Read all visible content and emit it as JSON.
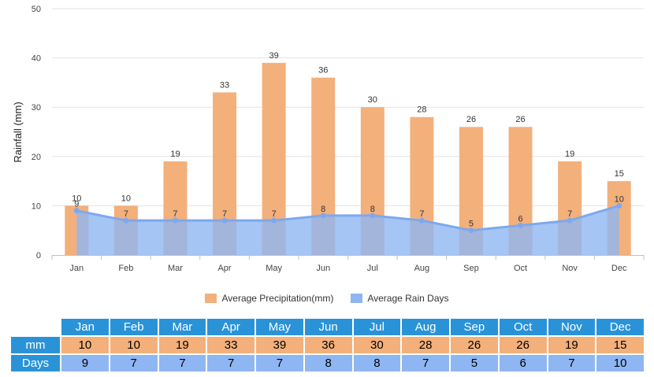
{
  "chart_data": {
    "type": "bar",
    "categories": [
      "Jan",
      "Feb",
      "Mar",
      "Apr",
      "May",
      "Jun",
      "Jul",
      "Aug",
      "Sep",
      "Oct",
      "Nov",
      "Dec"
    ],
    "series": [
      {
        "name": "Average Precipitation(mm)",
        "type": "bar",
        "color": "#f3b07b",
        "values": [
          10,
          10,
          19,
          33,
          39,
          36,
          30,
          28,
          26,
          26,
          19,
          15
        ]
      },
      {
        "name": "Average Rain Days",
        "type": "area",
        "color": "#8eb6f3",
        "line_color": "#7ea8ee",
        "values": [
          9,
          7,
          7,
          7,
          7,
          8,
          8,
          7,
          5,
          6,
          7,
          10
        ]
      }
    ],
    "ylabel": "Rainfall (mm)",
    "ylim": [
      0,
      50
    ],
    "yticks": [
      0,
      10,
      20,
      30,
      40,
      50
    ],
    "grid": true,
    "legend_position": "bottom"
  },
  "table": {
    "row_labels": {
      "mm": "mm",
      "days": "Days"
    },
    "header_color": "#2a93d8"
  }
}
